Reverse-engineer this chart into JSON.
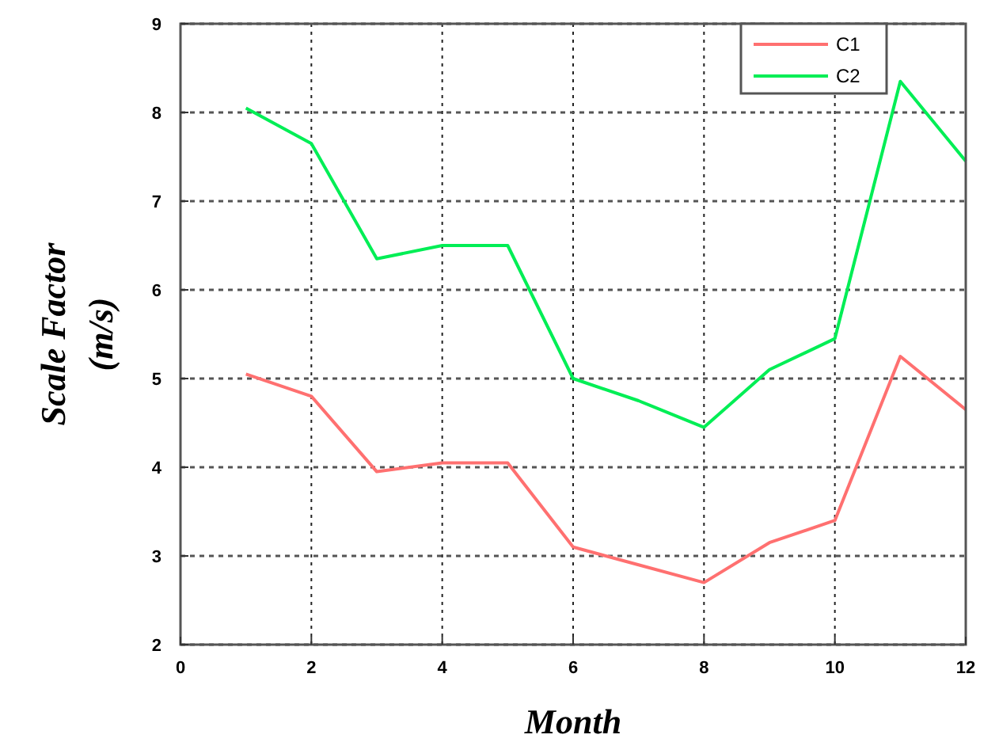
{
  "chart_data": {
    "type": "line",
    "xlabel": "Month",
    "ylabel": "Scale Factor (m/s)",
    "x": [
      1,
      2,
      3,
      4,
      5,
      6,
      7,
      8,
      9,
      10,
      11,
      12
    ],
    "series": [
      {
        "name": "C1",
        "color": "#ff7070",
        "values": [
          5.05,
          4.8,
          3.95,
          4.05,
          4.05,
          3.1,
          2.9,
          2.7,
          3.15,
          3.4,
          5.25,
          4.65
        ]
      },
      {
        "name": "C2",
        "color": "#00ee55",
        "values": [
          8.05,
          7.65,
          6.35,
          6.5,
          6.5,
          5.0,
          4.75,
          4.45,
          5.1,
          5.45,
          8.35,
          7.45
        ]
      }
    ],
    "xlim": [
      0,
      12
    ],
    "xticks": [
      0,
      2,
      4,
      6,
      8,
      10,
      12
    ],
    "ylim": [
      2,
      9
    ],
    "yticks": [
      2,
      3,
      4,
      5,
      6,
      7,
      8,
      9
    ],
    "grid": true,
    "legend": "top right",
    "line_style": "solid",
    "marker": "none"
  }
}
